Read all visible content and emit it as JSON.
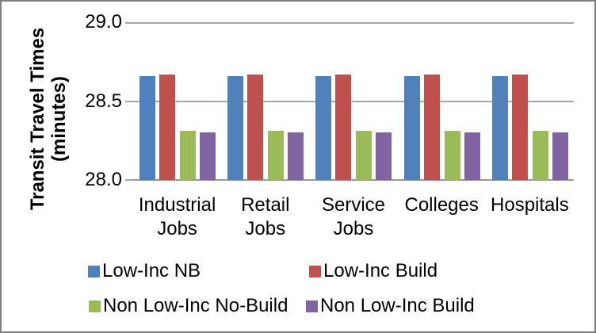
{
  "frame": {
    "background": "#FFFFFF",
    "border_color": "#7F7F7F"
  },
  "chart_data": {
    "type": "bar",
    "title": "",
    "ylabel": "Transit Travel Times (minutes)",
    "ylabel_lines": [
      "Transit Travel Times",
      "(minutes)"
    ],
    "xlabel": "",
    "categories": [
      "Industrial Jobs",
      "Retail Jobs",
      "Service Jobs",
      "Colleges",
      "Hospitals"
    ],
    "category_label_lines": [
      [
        "Industrial",
        "Jobs"
      ],
      [
        "Retail",
        "Jobs"
      ],
      [
        "Service",
        "Jobs"
      ],
      [
        "Colleges"
      ],
      [
        "Hospitals"
      ]
    ],
    "series": [
      {
        "name": "Low-Inc NB",
        "color": "#4F81BD",
        "values": [
          28.66,
          28.66,
          28.66,
          28.66,
          28.66
        ]
      },
      {
        "name": "Low-Inc Build",
        "color": "#C0504D",
        "values": [
          28.67,
          28.67,
          28.67,
          28.67,
          28.67
        ]
      },
      {
        "name": "Non Low-Inc No-Build",
        "color": "#9BBB59",
        "values": [
          28.31,
          28.31,
          28.31,
          28.31,
          28.31
        ]
      },
      {
        "name": "Non Low-Inc Build",
        "color": "#8064A2",
        "values": [
          28.3,
          28.3,
          28.3,
          28.3,
          28.3
        ]
      }
    ],
    "ylim": [
      28.0,
      29.0
    ],
    "yticks": [
      29.0,
      28.5,
      28.0
    ],
    "ytick_labels": [
      "29.0",
      "28.5",
      "28.0"
    ],
    "grid": true,
    "gridline_color": "#A6A6A6",
    "axis_line_color": "#999999",
    "legend_position": "bottom",
    "legend_rows": [
      [
        "Low-Inc NB",
        "Low-Inc Build"
      ],
      [
        "Non Low-Inc No-Build",
        "Non Low-Inc Build"
      ]
    ]
  }
}
